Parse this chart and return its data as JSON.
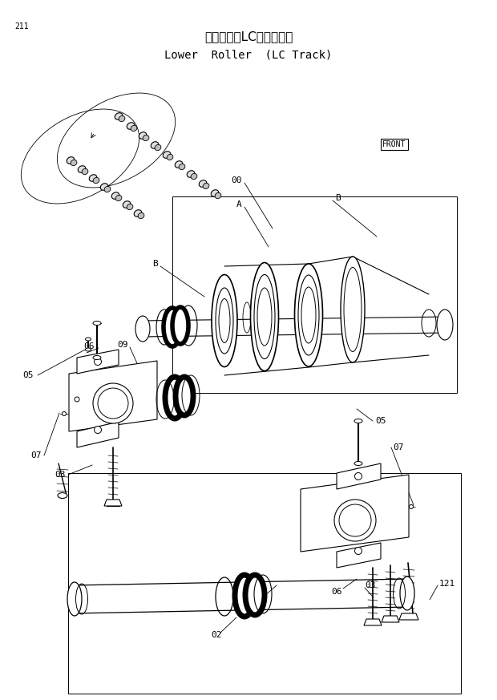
{
  "title_jp": "下ローラ（LCトラック）",
  "title_en": "Lower  Roller  (LC Track)",
  "page_number": "211",
  "background_color": "#ffffff",
  "line_color": "#000000",
  "figsize": [
    6.2,
    8.73
  ],
  "dpi": 100
}
